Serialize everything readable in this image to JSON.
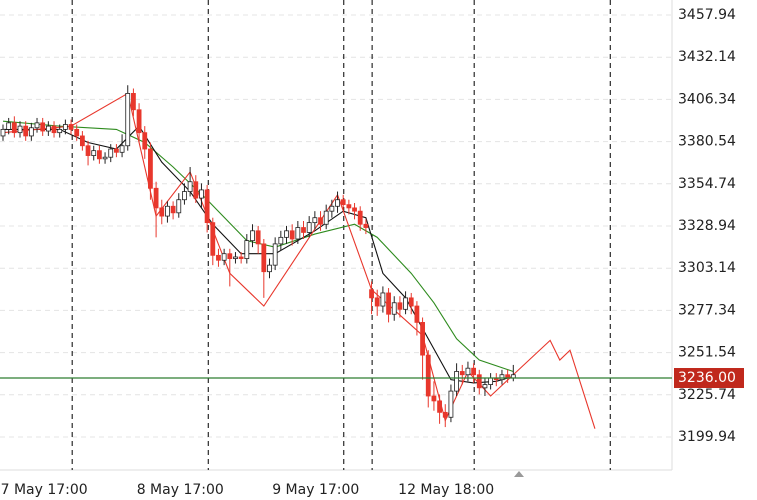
{
  "chart_data": {
    "type": "candlestick",
    "xlim": [
      -0.53,
      117.99
    ],
    "ylim": [
      3179.76,
      3467.11
    ],
    "yticks": [
      3457.94,
      3432.14,
      3406.34,
      3380.54,
      3354.74,
      3328.94,
      3303.14,
      3277.34,
      3251.54,
      3225.74,
      3199.94
    ],
    "xticks": [
      {
        "value": 12.2,
        "label": "7 May 17:00"
      },
      {
        "value": 36.2,
        "label": "8 May 17:00"
      },
      {
        "value": 60.1,
        "label": "9 May 17:00"
      },
      {
        "value": 65.1,
        "label": null
      },
      {
        "value": 83.1,
        "label": "12 May 18:00"
      },
      {
        "value": 107.1,
        "label": null
      }
    ],
    "grid": true,
    "up_color": "#ffffff",
    "down_color": "#e8372c",
    "open": [
      3384,
      3388,
      3392,
      3386,
      3390,
      3384,
      3389,
      3392,
      3387,
      3390,
      3386,
      3388,
      3391,
      3388,
      3384,
      3378,
      3372,
      3375,
      3370,
      3371,
      3376,
      3374,
      3378,
      3410,
      3400,
      3386,
      3376,
      3352,
      3340,
      3335,
      3341,
      3337,
      3345,
      3350,
      3356,
      3346,
      3351,
      3331,
      3311,
      3308,
      3312,
      3309,
      3310,
      3309,
      3320,
      3326,
      3318,
      3301,
      3305,
      3318,
      3322,
      3326,
      3321,
      3328,
      3325,
      3331,
      3334,
      3330,
      3338,
      3341,
      3345,
      3342,
      3340,
      3338,
      3330,
      3290,
      3285,
      3280,
      3288,
      3275,
      3282,
      3278,
      3285,
      3280,
      3270,
      3250,
      3225,
      3222,
      3215,
      3212,
      3228,
      3240,
      3238,
      3242,
      3238,
      3230,
      3232,
      3236,
      3235,
      3238,
      3236
    ],
    "high": [
      3391,
      3395,
      3396,
      3393,
      3393,
      3392,
      3395,
      3395,
      3393,
      3393,
      3391,
      3394,
      3394,
      3391,
      3387,
      3381,
      3378,
      3378,
      3374,
      3379,
      3379,
      3385,
      3415,
      3413,
      3404,
      3390,
      3380,
      3356,
      3345,
      3344,
      3344,
      3349,
      3355,
      3365,
      3360,
      3355,
      3354,
      3334,
      3315,
      3315,
      3315,
      3313,
      3313,
      3324,
      3330,
      3329,
      3321,
      3309,
      3322,
      3326,
      3329,
      3330,
      3332,
      3332,
      3335,
      3338,
      3338,
      3342,
      3345,
      3350,
      3348,
      3345,
      3343,
      3341,
      3333,
      3295,
      3290,
      3292,
      3291,
      3286,
      3286,
      3289,
      3288,
      3283,
      3273,
      3253,
      3234,
      3226,
      3220,
      3232,
      3245,
      3244,
      3246,
      3245,
      3241,
      3236,
      3239,
      3239,
      3241,
      3241,
      3244
    ],
    "low": [
      3381,
      3385,
      3383,
      3383,
      3381,
      3381,
      3386,
      3384,
      3384,
      3383,
      3383,
      3385,
      3385,
      3381,
      3375,
      3366,
      3369,
      3367,
      3367,
      3368,
      3371,
      3371,
      3375,
      3396,
      3380,
      3370,
      3345,
      3322,
      3330,
      3331,
      3333,
      3334,
      3342,
      3347,
      3343,
      3340,
      3325,
      3305,
      3304,
      3305,
      3292,
      3306,
      3306,
      3306,
      3316,
      3312,
      3285,
      3297,
      3302,
      3314,
      3318,
      3317,
      3318,
      3321,
      3322,
      3327,
      3326,
      3327,
      3334,
      3337,
      3338,
      3336,
      3333,
      3326,
      3324,
      3275,
      3274,
      3276,
      3270,
      3271,
      3273,
      3275,
      3275,
      3262,
      3235,
      3218,
      3216,
      3208,
      3206,
      3209,
      3225,
      3232,
      3234,
      3233,
      3226,
      3225,
      3229,
      3231,
      3232,
      3233,
      3234
    ],
    "close": [
      3388,
      3392,
      3386,
      3390,
      3384,
      3389,
      3392,
      3387,
      3390,
      3386,
      3388,
      3391,
      3388,
      3384,
      3378,
      3372,
      3375,
      3370,
      3371,
      3376,
      3374,
      3378,
      3410,
      3400,
      3386,
      3376,
      3352,
      3340,
      3335,
      3341,
      3337,
      3345,
      3350,
      3356,
      3346,
      3351,
      3331,
      3311,
      3308,
      3312,
      3309,
      3310,
      3309,
      3320,
      3326,
      3318,
      3301,
      3305,
      3318,
      3322,
      3326,
      3321,
      3328,
      3325,
      3331,
      3334,
      3330,
      3338,
      3341,
      3345,
      3342,
      3340,
      3338,
      3330,
      3328,
      3285,
      3280,
      3288,
      3275,
      3282,
      3278,
      3285,
      3280,
      3270,
      3250,
      3225,
      3222,
      3215,
      3212,
      3228,
      3240,
      3238,
      3242,
      3238,
      3230,
      3232,
      3236,
      3235,
      3238,
      3236,
      3238
    ],
    "overlays": [
      {
        "color": "#2e8b1e",
        "x": [
          0,
          10,
          20,
          25,
          30,
          36,
          43,
          48,
          55,
          62,
          66,
          72,
          76,
          80,
          84,
          90
        ],
        "values": [
          3393,
          3390,
          3388,
          3380,
          3365,
          3345,
          3320,
          3316,
          3324,
          3330,
          3322,
          3300,
          3282,
          3260,
          3247,
          3240
        ]
      },
      {
        "color": "#111111",
        "x": [
          0,
          10,
          15,
          20,
          24,
          28,
          33,
          37,
          42,
          48,
          55,
          60,
          64,
          67,
          71,
          75,
          79,
          83,
          87,
          90
        ],
        "values": [
          3388,
          3388,
          3380,
          3376,
          3390,
          3368,
          3350,
          3330,
          3312,
          3312,
          3326,
          3338,
          3334,
          3300,
          3285,
          3260,
          3235,
          3233,
          3234,
          3237
        ]
      },
      {
        "color": "#e8372c",
        "x": [
          0,
          12,
          22,
          27,
          33,
          40,
          46,
          59,
          65,
          74,
          78,
          82,
          86,
          90,
          96.5,
          98.2,
          100,
          104.4
        ],
        "values": [
          3386,
          3390,
          3410,
          3335,
          3362,
          3300,
          3280,
          3348,
          3290,
          3262,
          3210,
          3240,
          3225,
          3238,
          3259,
          3247,
          3253,
          3205
        ]
      }
    ],
    "price_line": {
      "value": 3236,
      "label": "3236.00",
      "color": "#2e7d32",
      "label_color": "#c0281c"
    }
  }
}
